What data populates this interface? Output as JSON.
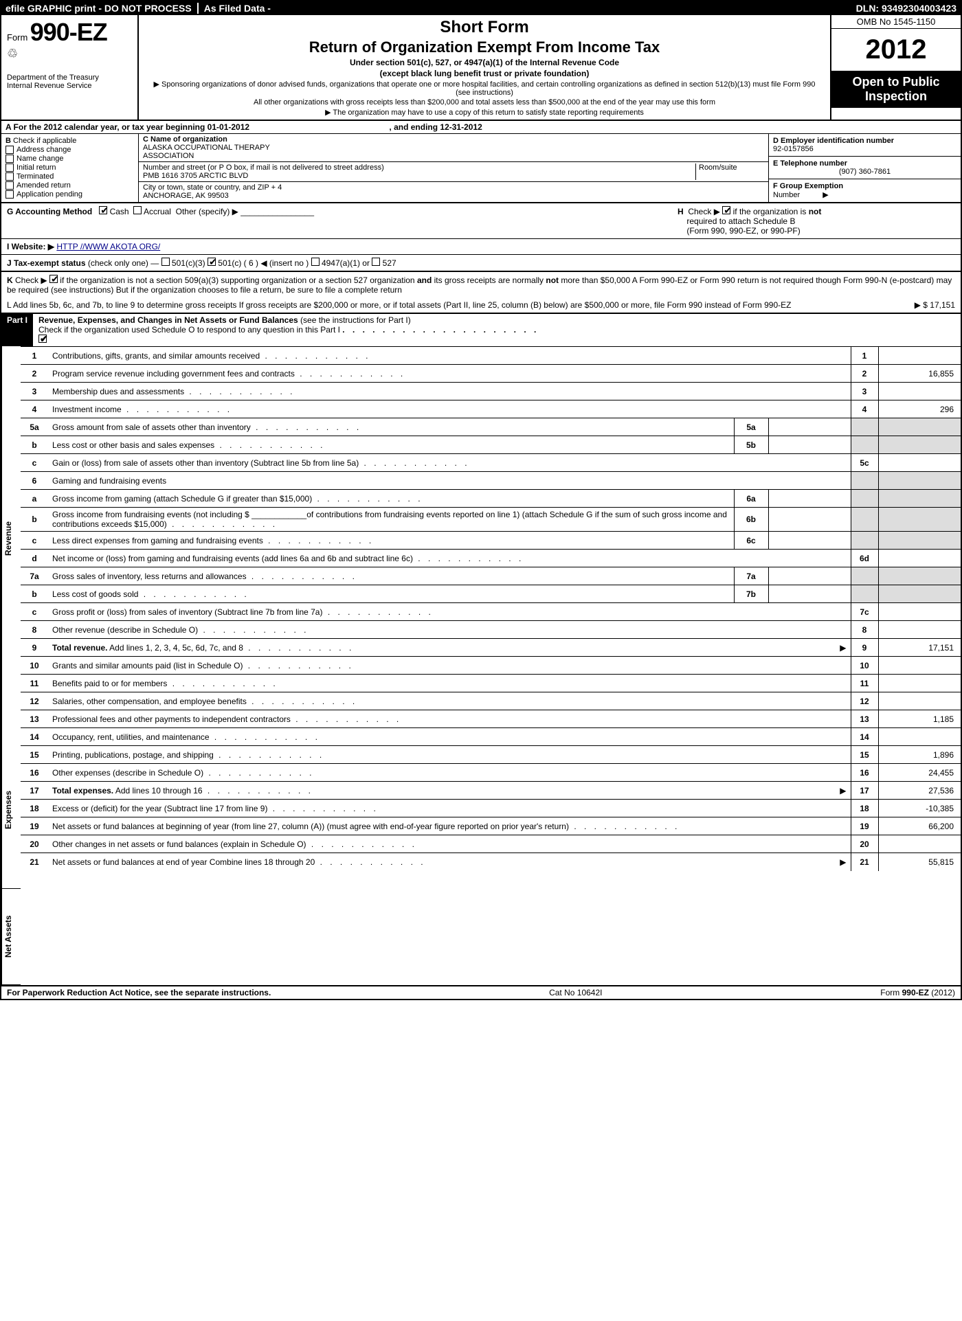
{
  "topbar": {
    "efile": "efile GRAPHIC print - DO NOT PROCESS",
    "asfiled": "As Filed Data -",
    "dln": "DLN: 93492304003423"
  },
  "header": {
    "form_prefix": "Form",
    "form_number": "990-EZ",
    "treasury1": "Department of the Treasury",
    "treasury2": "Internal Revenue Service",
    "short_form": "Short Form",
    "return_title": "Return of Organization Exempt From Income Tax",
    "subtitle": "Under section 501(c), 527, or 4947(a)(1) of the Internal Revenue Code",
    "except": "(except black lung benefit trust or private foundation)",
    "note1": "▶ Sponsoring organizations of donor advised funds, organizations that operate one or more hospital facilities, and certain controlling organizations as defined in section 512(b)(13) must file Form 990 (see instructions)",
    "note2": "All other organizations with gross receipts less than $200,000 and total assets less than $500,000 at the end of the year may use this form",
    "note3": "▶ The organization may have to use a copy of this return to satisfy state reporting requirements",
    "omb": "OMB No 1545-1150",
    "year": "2012",
    "open1": "Open to Public",
    "open2": "Inspection"
  },
  "rowA": {
    "text_pre": "A  For the 2012 calendar year, or tax year beginning ",
    "begin": "01-01-2012",
    "text_mid": ", and ending ",
    "end": "12-31-2012"
  },
  "colB": {
    "head": "B",
    "head_txt": "Check if applicable",
    "items": [
      "Address change",
      "Name change",
      "Initial return",
      "Terminated",
      "Amended return",
      "Application pending"
    ]
  },
  "colC": {
    "c_label": "C Name of organization",
    "c_name1": "ALASKA OCCUPATIONAL THERAPY",
    "c_name2": "ASSOCIATION",
    "street_label": "Number and street (or P O box, if mail is not delivered to street address)",
    "room_label": "Room/suite",
    "street": "PMB 1616 3705 ARCTIC BLVD",
    "city_label": "City or town, state or country, and ZIP + 4",
    "city": "ANCHORAGE, AK 99503"
  },
  "colDEF": {
    "d_label": "D Employer identification number",
    "d_val": "92-0157856",
    "e_label": "E Telephone number",
    "e_val": "(907) 360-7861",
    "f_label": "F Group Exemption",
    "f_label2": "Number",
    "f_arrow": "▶"
  },
  "lineG": {
    "label": "G Accounting Method",
    "cash": "Cash",
    "accrual": "Accrual",
    "other": "Other (specify) ▶"
  },
  "lineH": {
    "pre": "H",
    "text1": "Check ▶",
    "text2": "if the organization is",
    "not": "not",
    "text3": "required to attach Schedule B",
    "text4": "(Form 990, 990-EZ, or 990-PF)"
  },
  "lineI": {
    "label": "I Website: ▶",
    "url": "HTTP //WWW AKOTA ORG/"
  },
  "lineJ": {
    "label": "J Tax-exempt status",
    "text": "(check only one) —",
    "o1": "501(c)(3)",
    "o2": "501(c) ( 6 )",
    "o2_hint": "◀ (insert no )",
    "o3": "4947(a)(1) or",
    "o4": "527"
  },
  "lineK": {
    "label": "K",
    "text1": "Check ▶",
    "text2": "if the organization is not a section 509(a)(3) supporting organization or a section 527 organization",
    "and": "and",
    "text3": "its gross receipts are normally",
    "not": "not",
    "text4": "more than $50,000  A Form 990-EZ or Form 990 return is not required though Form 990-N (e-postcard) may be required (see instructions)  But if the organization chooses to file a return, be sure to file a complete return"
  },
  "lineL": {
    "text": "L Add lines 5b, 6c, and 7b, to line 9 to determine gross receipts  If gross receipts are $200,000 or more, or if total assets (Part II, line 25, column (B) below) are $500,000 or more, file Form 990 instead of Form 990-EZ",
    "arrow": "▶",
    "val": "$ 17,151"
  },
  "partI": {
    "label": "Part I",
    "title": "Revenue, Expenses, and Changes in Net Assets or Fund Balances",
    "hint": "(see the instructions for Part I)",
    "check_text": "Check if the organization used Schedule O to respond to any question in this Part I"
  },
  "sections": {
    "revenue": "Revenue",
    "expenses": "Expenses",
    "netassets": "Net Assets"
  },
  "lines": {
    "l1": {
      "num": "1",
      "desc": "Contributions, gifts, grants, and similar amounts received",
      "r": "1",
      "v": ""
    },
    "l2": {
      "num": "2",
      "desc": "Program service revenue including government fees and contracts",
      "r": "2",
      "v": "16,855"
    },
    "l3": {
      "num": "3",
      "desc": "Membership dues and assessments",
      "r": "3",
      "v": ""
    },
    "l4": {
      "num": "4",
      "desc": "Investment income",
      "r": "4",
      "v": "296"
    },
    "l5a": {
      "num": "5a",
      "desc": "Gross amount from sale of assets other than inventory",
      "sub": "5a"
    },
    "l5b": {
      "num": "b",
      "desc": "Less  cost or other basis and sales expenses",
      "sub": "5b"
    },
    "l5c": {
      "num": "c",
      "desc": "Gain or (loss) from sale of assets other than inventory (Subtract line 5b from line 5a)",
      "r": "5c",
      "v": ""
    },
    "l6": {
      "num": "6",
      "desc": "Gaming and fundraising events"
    },
    "l6a": {
      "num": "a",
      "desc": "Gross income from gaming (attach Schedule G if greater than $15,000)",
      "sub": "6a"
    },
    "l6b": {
      "num": "b",
      "desc": "Gross income from fundraising events (not including $ ____________of contributions from fundraising events reported on line 1) (attach Schedule G if the sum of such gross income and contributions exceeds $15,000)",
      "sub": "6b"
    },
    "l6c": {
      "num": "c",
      "desc": "Less  direct expenses from gaming and fundraising events",
      "sub": "6c"
    },
    "l6d": {
      "num": "d",
      "desc": "Net income or (loss) from gaming and fundraising events (add lines 6a and 6b and subtract line 6c)",
      "r": "6d",
      "v": ""
    },
    "l7a": {
      "num": "7a",
      "desc": "Gross sales of inventory, less returns and allowances",
      "sub": "7a"
    },
    "l7b": {
      "num": "b",
      "desc": "Less  cost of goods sold",
      "sub": "7b"
    },
    "l7c": {
      "num": "c",
      "desc": "Gross profit or (loss) from sales of inventory (Subtract line 7b from line 7a)",
      "r": "7c",
      "v": ""
    },
    "l8": {
      "num": "8",
      "desc": "Other revenue (describe in Schedule O)",
      "r": "8",
      "v": ""
    },
    "l9": {
      "num": "9",
      "desc": "Total revenue. Add lines 1, 2, 3, 4, 5c, 6d, 7c, and 8",
      "r": "9",
      "v": "17,151",
      "arrow": "▶",
      "bold": true
    },
    "l10": {
      "num": "10",
      "desc": "Grants and similar amounts paid (list in Schedule O)",
      "r": "10",
      "v": ""
    },
    "l11": {
      "num": "11",
      "desc": "Benefits paid to or for members",
      "r": "11",
      "v": ""
    },
    "l12": {
      "num": "12",
      "desc": "Salaries, other compensation, and employee benefits",
      "r": "12",
      "v": ""
    },
    "l13": {
      "num": "13",
      "desc": "Professional fees and other payments to independent contractors",
      "r": "13",
      "v": "1,185"
    },
    "l14": {
      "num": "14",
      "desc": "Occupancy, rent, utilities, and maintenance",
      "r": "14",
      "v": ""
    },
    "l15": {
      "num": "15",
      "desc": "Printing, publications, postage, and shipping",
      "r": "15",
      "v": "1,896"
    },
    "l16": {
      "num": "16",
      "desc": "Other expenses (describe in Schedule O)",
      "r": "16",
      "v": "24,455"
    },
    "l17": {
      "num": "17",
      "desc": "Total expenses. Add lines 10 through 16",
      "r": "17",
      "v": "27,536",
      "arrow": "▶",
      "bold": true
    },
    "l18": {
      "num": "18",
      "desc": "Excess or (deficit) for the year (Subtract line 17 from line 9)",
      "r": "18",
      "v": "-10,385"
    },
    "l19": {
      "num": "19",
      "desc": "Net assets or fund balances at beginning of year (from line 27, column (A)) (must agree with end-of-year figure reported on prior year's return)",
      "r": "19",
      "v": "66,200"
    },
    "l20": {
      "num": "20",
      "desc": "Other changes in net assets or fund balances (explain in Schedule O)",
      "r": "20",
      "v": ""
    },
    "l21": {
      "num": "21",
      "desc": "Net assets or fund balances at end of year  Combine lines 18 through 20",
      "r": "21",
      "v": "55,815",
      "arrow": "▶"
    }
  },
  "footer": {
    "left": "For Paperwork Reduction Act Notice, see the separate instructions.",
    "mid": "Cat No 10642I",
    "right_pre": "Form ",
    "right_form": "990-EZ",
    "right_year": " (2012)"
  }
}
